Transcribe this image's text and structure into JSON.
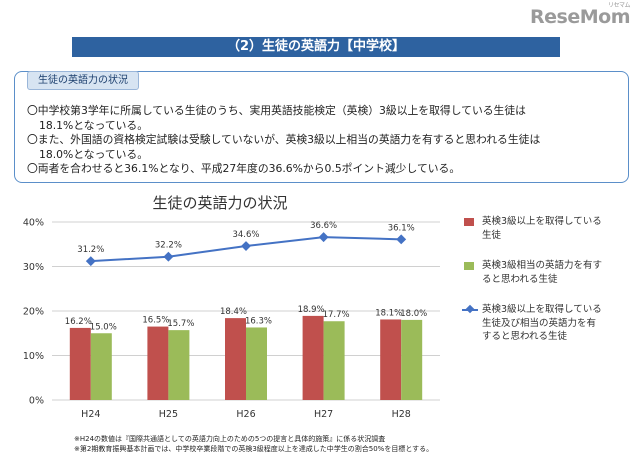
{
  "brand": {
    "logo": "ReseMom",
    "ruby": "リセマム"
  },
  "header": {
    "title": "（2）生徒の英語力【中学校】"
  },
  "summary": {
    "label": "生徒の英語力の状況",
    "bullets": [
      {
        "line1": "〇中学校第3学年に所属している生徒のうち、実用英語技能検定（英検）3級以上を取得している生徒は",
        "line2": "18.1%となっている。"
      },
      {
        "line1": "〇また、外国語の資格検定試験は受験していないが、英検3級以上相当の英語力を有すると思われる生徒は",
        "line2": "18.0%となっている。"
      },
      {
        "line1": "〇両者を合わせると36.1%となり、平成27年度の36.6%から0.5ポイント減少している。",
        "line2": ""
      }
    ]
  },
  "chart_data": {
    "type": "bar",
    "title": "生徒の英語力の状況",
    "categories": [
      "H24",
      "H25",
      "H26",
      "H27",
      "H28"
    ],
    "ylim": [
      0,
      40
    ],
    "yticks": [
      "0%",
      "10%",
      "20%",
      "30%",
      "40%"
    ],
    "grid": true,
    "legend_position": "right",
    "series": [
      {
        "name": "英検3級以上を取得している生徒",
        "kind": "bar",
        "color": "#c0504d",
        "values": [
          16.2,
          16.5,
          18.4,
          18.9,
          18.1
        ],
        "labels": [
          "16.2%",
          "16.5%",
          "18.4%",
          "18.9%",
          "18.1%"
        ]
      },
      {
        "name": "英検3級相当の英語力を有すると思われる生徒",
        "kind": "bar",
        "color": "#9bbb59",
        "values": [
          15.0,
          15.7,
          16.3,
          17.7,
          18.0
        ],
        "labels": [
          "15.0%",
          "15.7%",
          "16.3%",
          "17.7%",
          "18.0%"
        ]
      },
      {
        "name": "英検3級以上を取得している生徒及び相当の英語力を有すると思われる生徒",
        "kind": "line",
        "color": "#4472c4",
        "values": [
          31.2,
          32.2,
          34.6,
          36.6,
          36.1
        ],
        "labels": [
          "31.2%",
          "32.2%",
          "34.6%",
          "36.6%",
          "36.1%"
        ]
      }
    ]
  },
  "legend": {
    "items": [
      {
        "line1": "英検3級以上を取得している",
        "line2": "生徒"
      },
      {
        "line1": "英検3級相当の英語力を有す",
        "line2": "ると思われる生徒"
      },
      {
        "line1": "英検3級以上を取得している",
        "line2": "生徒及び相当の英語力を有",
        "line3": "すると思われる生徒"
      }
    ]
  },
  "footnotes": [
    "※H24の数値は『国際共通語としての英語力向上のための5つの提言と具体的施策』に係る状況調査",
    "※第2期教育振興基本計画では、中学校卒業段階での英検3級程度以上を達成した中学生の割合50%を目標とする。"
  ]
}
